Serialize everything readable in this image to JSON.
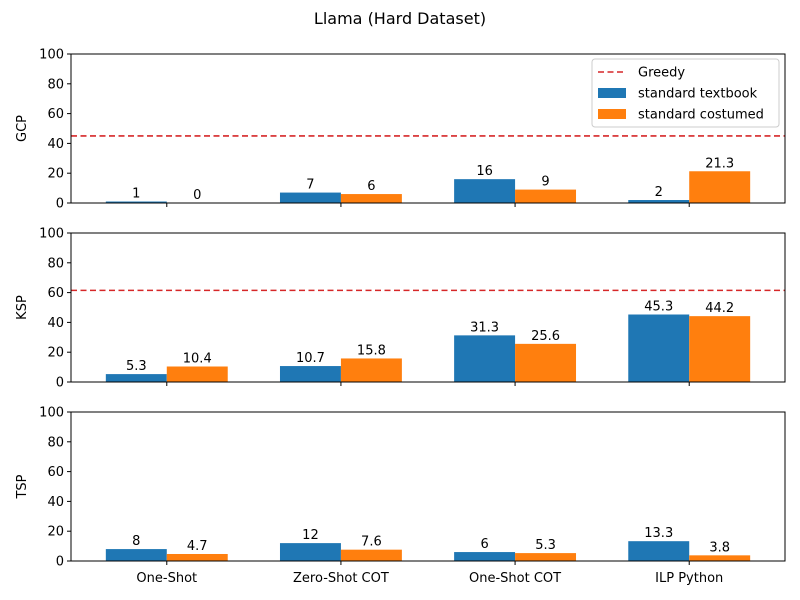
{
  "chart_data": {
    "type": "bar",
    "title": "Llama (Hard Dataset)",
    "categories": [
      "One-Shot",
      "Zero-Shot COT",
      "One-Shot COT",
      "ILP Python"
    ],
    "legend": {
      "placement": "top-right",
      "entries": [
        "Greedy",
        "standard textbook",
        "standard costumed"
      ]
    },
    "colors": {
      "standard textbook": "#1f77b4",
      "standard costumed": "#ff7f0e",
      "Greedy": "#d62728"
    },
    "panels": [
      {
        "ylabel": "GCP",
        "ylim": [
          0,
          100
        ],
        "yticks": [
          "0",
          "20",
          "40",
          "60",
          "80",
          "100"
        ],
        "greedy": 45,
        "series": [
          {
            "name": "standard textbook",
            "values": [
              1,
              7,
              16,
              2
            ],
            "labels": [
              "1",
              "7",
              "16",
              "2"
            ]
          },
          {
            "name": "standard costumed",
            "values": [
              0,
              6,
              9,
              21.3
            ],
            "labels": [
              "0",
              "6",
              "9",
              "21.3"
            ]
          }
        ]
      },
      {
        "ylabel": "KSP",
        "ylim": [
          0,
          100
        ],
        "yticks": [
          "0",
          "20",
          "40",
          "60",
          "80",
          "100"
        ],
        "greedy": 61.5,
        "series": [
          {
            "name": "standard textbook",
            "values": [
              5.3,
              10.7,
              31.3,
              45.3
            ],
            "labels": [
              "5.3",
              "10.7",
              "31.3",
              "45.3"
            ]
          },
          {
            "name": "standard costumed",
            "values": [
              10.4,
              15.8,
              25.6,
              44.2
            ],
            "labels": [
              "10.4",
              "15.8",
              "25.6",
              "44.2"
            ]
          }
        ]
      },
      {
        "ylabel": "TSP",
        "ylim": [
          0,
          100
        ],
        "yticks": [
          "0",
          "20",
          "40",
          "60",
          "80",
          "100"
        ],
        "greedy": null,
        "series": [
          {
            "name": "standard textbook",
            "values": [
              8,
              12,
              6,
              13.3
            ],
            "labels": [
              "8",
              "12",
              "6",
              "13.3"
            ]
          },
          {
            "name": "standard costumed",
            "values": [
              4.7,
              7.6,
              5.3,
              3.8
            ],
            "labels": [
              "4.7",
              "7.6",
              "5.3",
              "3.8"
            ]
          }
        ]
      }
    ]
  }
}
